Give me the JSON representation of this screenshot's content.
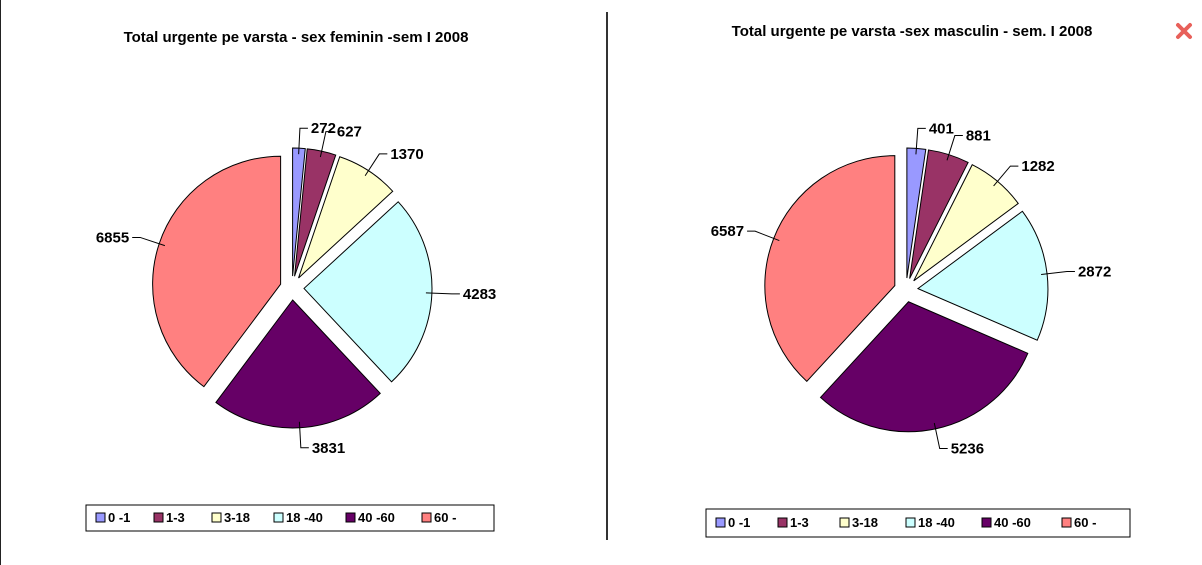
{
  "close_icon": "close-icon",
  "chart_data": [
    {
      "type": "pie",
      "exploded": true,
      "title": "Total urgente pe varsta - sex feminin  -sem I 2008",
      "categories": [
        "0 -1",
        "1-3",
        "3-18",
        "18 -40",
        "40 -60",
        "60 -"
      ],
      "values": [
        272,
        627,
        1370,
        4283,
        3831,
        6855
      ],
      "data_labels": [
        "272",
        "627",
        "1370",
        "4283",
        "3831",
        "6855"
      ],
      "colors": [
        "#9999ff",
        "#993366",
        "#ffffcc",
        "#ccffff",
        "#660066",
        "#ff8080"
      ],
      "legend_position": "bottom"
    },
    {
      "type": "pie",
      "exploded": true,
      "title": "Total urgente pe varsta -sex masculin - sem. I 2008",
      "categories": [
        "0 -1",
        "1-3",
        "3-18",
        "18 -40",
        "40 -60",
        "60 -"
      ],
      "values": [
        401,
        881,
        1282,
        2872,
        5236,
        6587
      ],
      "data_labels": [
        "401",
        "881",
        "1282",
        "2872",
        "5236",
        "6587"
      ],
      "colors": [
        "#9999ff",
        "#993366",
        "#ffffcc",
        "#ccffff",
        "#660066",
        "#ff8080"
      ],
      "legend_position": "bottom"
    }
  ]
}
